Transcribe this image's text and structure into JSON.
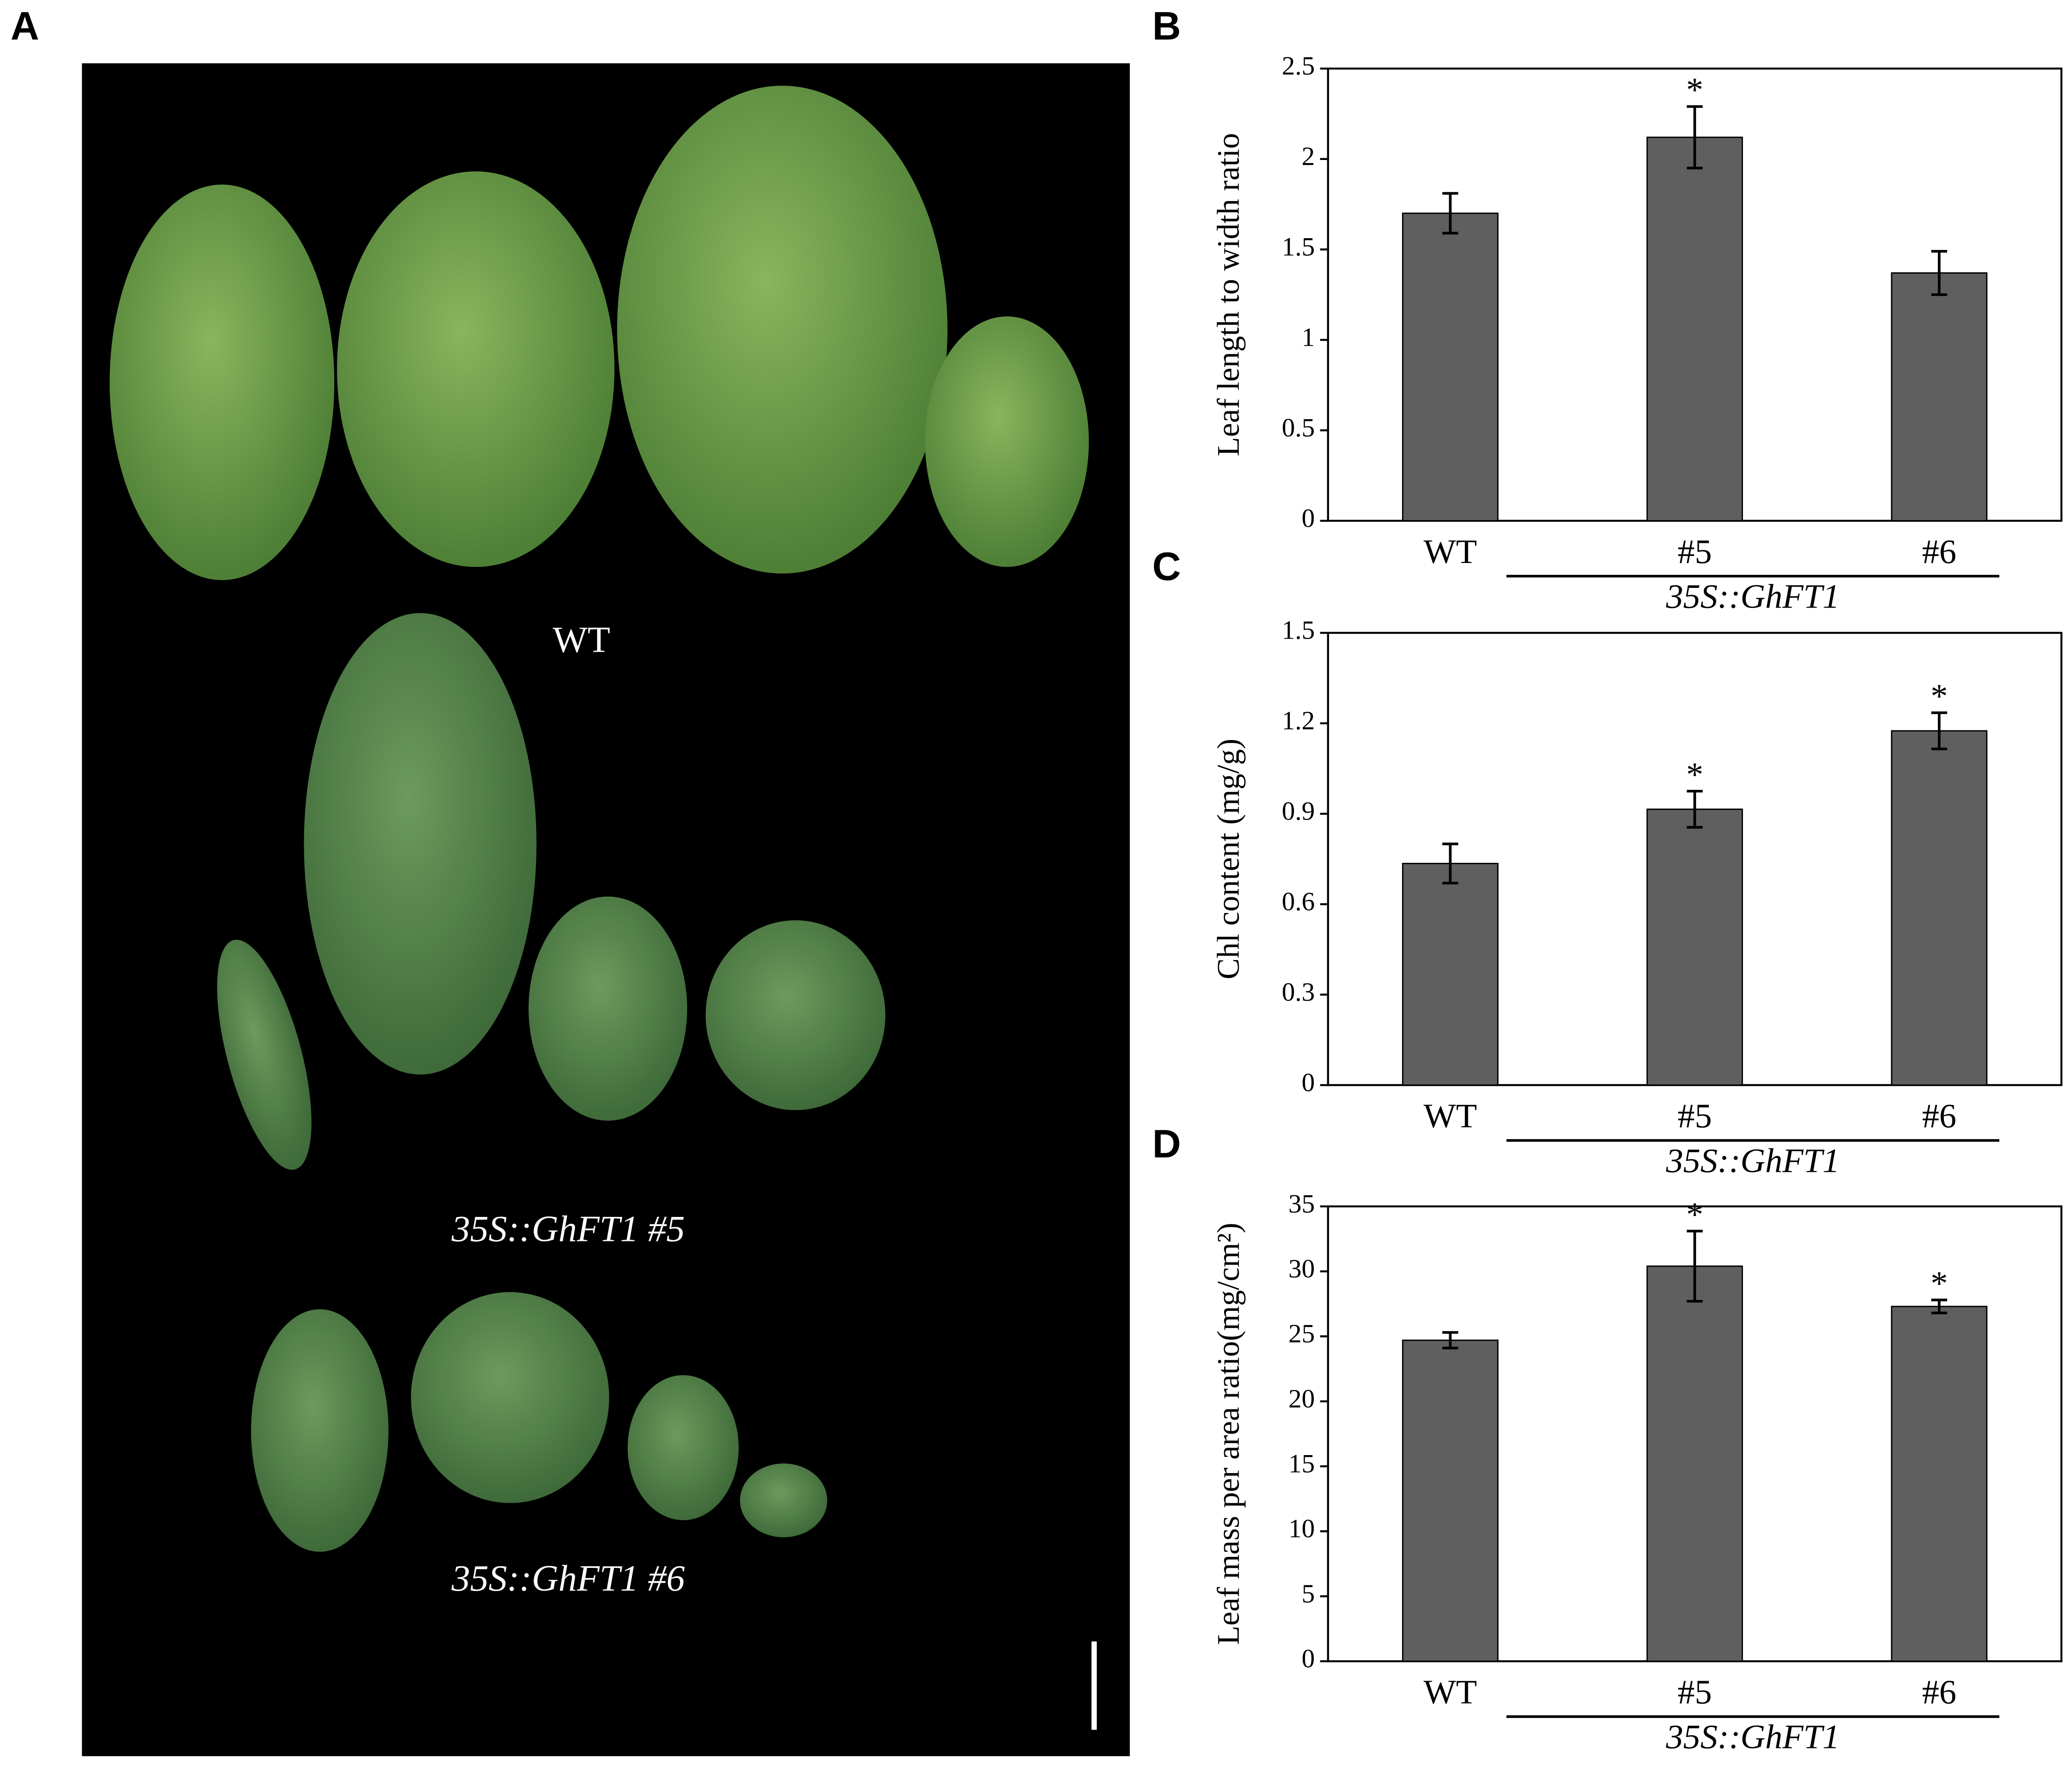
{
  "photo": {
    "panel": "A",
    "labels": [
      "WT",
      "35S::GhFT1 #5",
      "35S::GhFT1 #6"
    ]
  },
  "chart_data": [
    {
      "type": "bar",
      "panel": "B",
      "y_label": "Leaf length to width ratio",
      "categories": [
        "WT",
        "#5",
        "#6"
      ],
      "group_label": "35S::GhFT1",
      "values": [
        1.7,
        2.12,
        1.37
      ],
      "errors": [
        0.11,
        0.17,
        0.12
      ],
      "annotations": [
        null,
        "*",
        null
      ],
      "color": "#5f5f5f",
      "ylim": [
        0,
        2.5
      ],
      "yticks": [
        0,
        0.5,
        1,
        1.5,
        2,
        2.5
      ]
    },
    {
      "type": "bar",
      "panel": "C",
      "y_label": "Chl content (mg/g)",
      "categories": [
        "WT",
        "#5",
        "#6"
      ],
      "group_label": "35S::GhFT1",
      "values": [
        0.735,
        0.915,
        1.175
      ],
      "errors": [
        0.065,
        0.06,
        0.06
      ],
      "annotations": [
        null,
        "*",
        "*"
      ],
      "color": "#5f5f5f",
      "ylim": [
        0,
        1.5
      ],
      "yticks": [
        0,
        0.3,
        0.6,
        0.9,
        1.2,
        1.5
      ]
    },
    {
      "type": "bar",
      "panel": "D",
      "y_label": "Leaf mass per area ratio(mg/cm²)",
      "categories": [
        "WT",
        "#5",
        "#6"
      ],
      "group_label": "35S::GhFT1",
      "values": [
        24.7,
        30.4,
        27.3
      ],
      "errors": [
        0.6,
        2.7,
        0.5
      ],
      "annotations": [
        null,
        "*",
        "*"
      ],
      "color": "#5f5f5f",
      "ylim": [
        0,
        35
      ],
      "yticks": [
        0,
        5,
        10,
        15,
        20,
        25,
        30,
        35
      ]
    }
  ]
}
